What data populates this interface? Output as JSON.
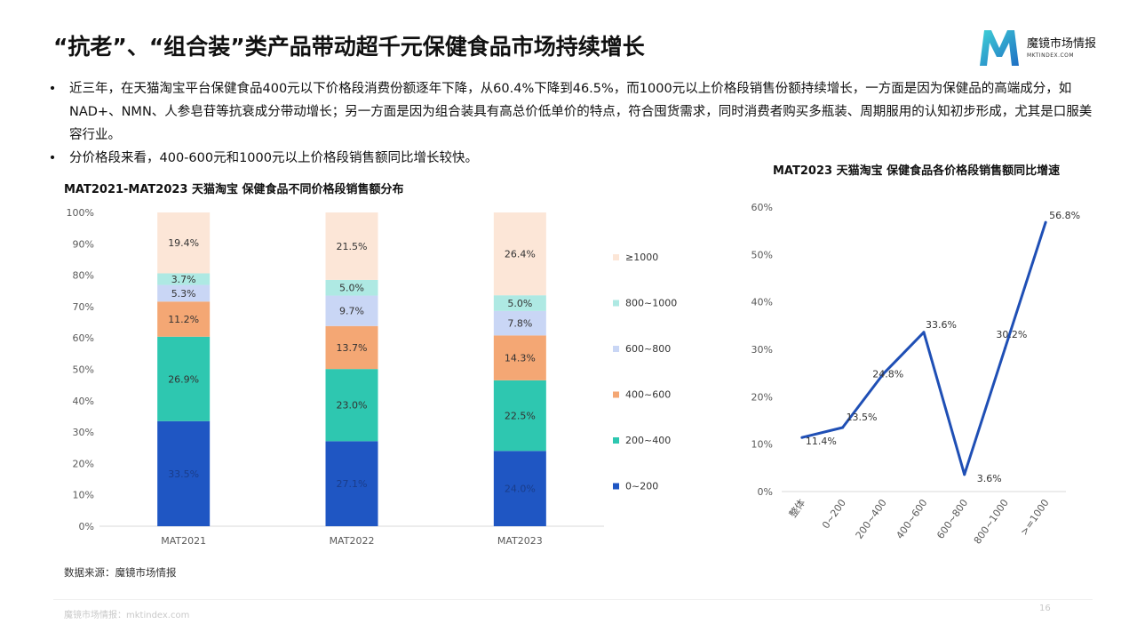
{
  "title": "“抗老”、“组合装”类产品带动超千元保健食品市场持续增长",
  "logo": {
    "name": "魔镜市场情报",
    "sub": "MKTINDEX.COM"
  },
  "bullets": [
    "近三年，在天猫淘宝平台保健食品400元以下价格段消费份额逐年下降，从60.4%下降到46.5%，而1000元以上价格段销售份额持续增长，一方面是因为保健品的高端成分，如NAD+、NMN、人参皂苷等抗衰成分带动增长；另一方面是因为组合装具有高总价低单价的特点，符合囤货需求，同时消费者购买多瓶装、周期服用的认知初步形成，尤其是口服美容行业。",
    "分价格段来看，400-600元和1000元以上价格段销售额同比增长较快。"
  ],
  "bullet_marker": "•",
  "source": "数据来源：魔镜市场情报",
  "footer": "魔镜市场情报：mktindex.com",
  "page_number": "16",
  "chart_data": [
    {
      "type": "bar",
      "stacked": true,
      "title": "MAT2021-MAT2023 天猫淘宝 保健食品不同价格段销售额分布",
      "categories": [
        "MAT2021",
        "MAT2022",
        "MAT2023"
      ],
      "y_ticks": [
        "0%",
        "10%",
        "20%",
        "30%",
        "40%",
        "50%",
        "60%",
        "70%",
        "80%",
        "90%",
        "100%"
      ],
      "ylim": [
        0,
        100
      ],
      "legend_position": "right",
      "series": [
        {
          "name": "0~200",
          "color": "#1f56c3",
          "values": [
            33.5,
            27.1,
            24.0
          ],
          "labels": [
            "33.5%",
            "27.1%",
            "24.0%"
          ]
        },
        {
          "name": "200~400",
          "color": "#2ec7b0",
          "values": [
            26.9,
            23.0,
            22.5
          ],
          "labels": [
            "26.9%",
            "23.0%",
            "22.5%"
          ]
        },
        {
          "name": "400~600",
          "color": "#f4a774",
          "values": [
            11.2,
            13.7,
            14.3
          ],
          "labels": [
            "11.2%",
            "13.7%",
            "14.3%"
          ]
        },
        {
          "name": "600~800",
          "color": "#c9d6f5",
          "values": [
            5.3,
            9.7,
            7.8
          ],
          "labels": [
            "5.3%",
            "9.7%",
            "7.8%"
          ]
        },
        {
          "name": "800~1000",
          "color": "#aee9e3",
          "values": [
            3.7,
            5.0,
            5.0
          ],
          "labels": [
            "3.7%",
            "5.0%",
            "5.0%"
          ]
        },
        {
          "name": "≥1000",
          "color": "#fce6d7",
          "values": [
            19.4,
            21.5,
            26.4
          ],
          "labels": [
            "19.4%",
            "21.5%",
            "26.4%"
          ]
        }
      ]
    },
    {
      "type": "line",
      "title": "MAT2023 天猫淘宝 保健食品各价格段销售额同比增速",
      "categories": [
        "整体",
        "0~200",
        "200~400",
        "400~600",
        "600~800",
        "800~1000",
        ">=1000"
      ],
      "values": [
        11.4,
        13.5,
        24.8,
        33.6,
        3.6,
        30.2,
        56.8
      ],
      "labels": [
        "11.4%",
        "13.5%",
        "24.8%",
        "33.6%",
        "3.6%",
        "30.2%",
        "56.8%"
      ],
      "y_ticks": [
        "0%",
        "10%",
        "20%",
        "30%",
        "40%",
        "50%",
        "60%"
      ],
      "ylim": [
        0,
        60
      ],
      "color": "#1f4fb5"
    }
  ]
}
